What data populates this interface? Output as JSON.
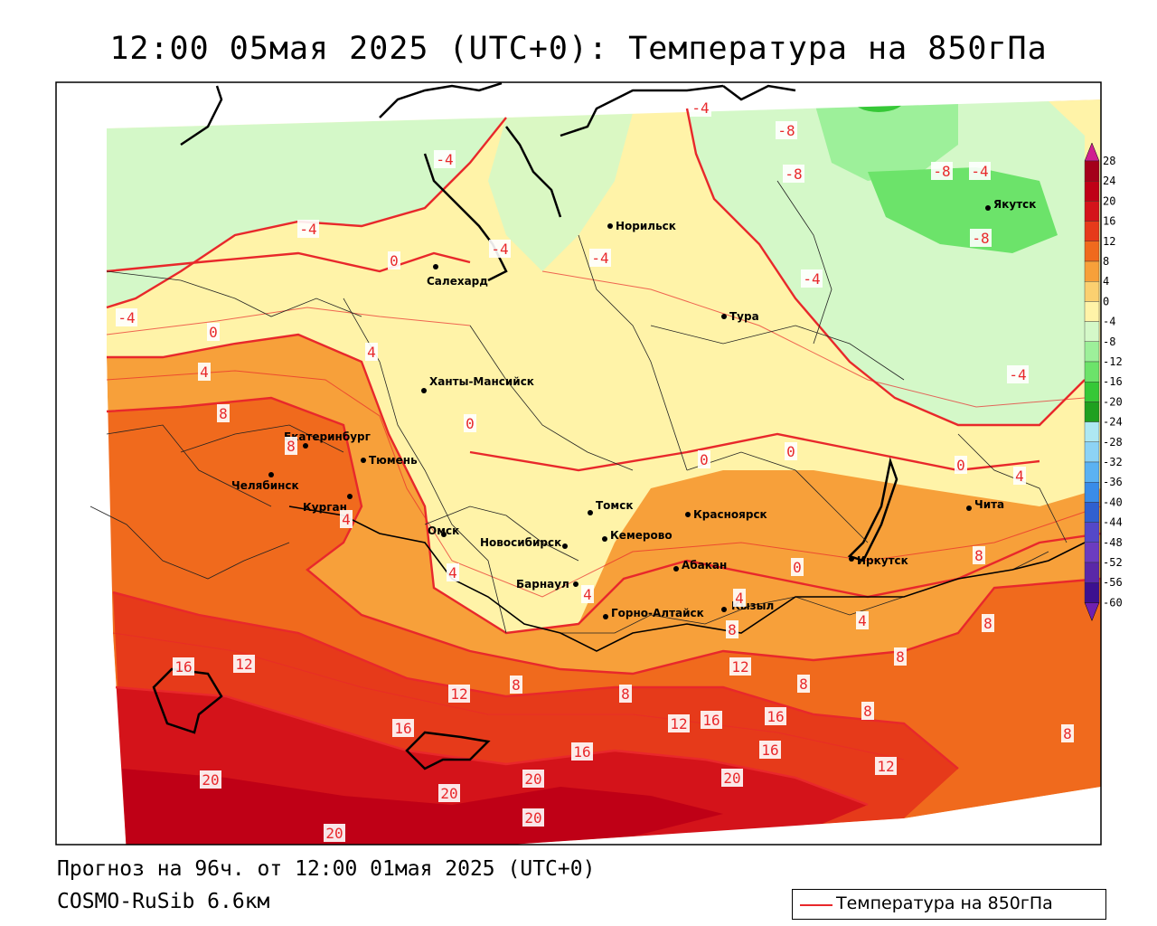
{
  "title": "12:00 05мая 2025 (UTC+0): Температура на 850гПа",
  "forecast_text": "Прогноз на 96ч. от 12:00 01мая 2025 (UTC+0)",
  "model_text": "COSMO-RuSib 6.6км",
  "legend": {
    "label": "Температура на 850гПа",
    "line_color": "#e8282b"
  },
  "colorbar": {
    "labels": [
      "28",
      "24",
      "20",
      "16",
      "12",
      "8",
      "4",
      "0",
      "-4",
      "-8",
      "-12",
      "-16",
      "-20",
      "-24",
      "-28",
      "-32",
      "-36",
      "-40",
      "-44",
      "-48",
      "-52",
      "-56",
      "-60"
    ],
    "colors": [
      "#a4001a",
      "#bf0016",
      "#d4131a",
      "#e63a1a",
      "#f06a1d",
      "#f7a03a",
      "#fbd070",
      "#fff3a8",
      "#d4f8c8",
      "#9df09a",
      "#6ce36a",
      "#36c837",
      "#1fa01f",
      "#aee8f2",
      "#8dd3f5",
      "#5bb2f2",
      "#3a8ce8",
      "#3060d0",
      "#5448c8",
      "#6c3cc0",
      "#5a28a8",
      "#3c1090"
    ],
    "top_arrow_color": "#d02090",
    "bottom_arrow_color": "#7020b0"
  },
  "cities": [
    {
      "name": "Норильск"
    },
    {
      "name": "Якутск"
    },
    {
      "name": "Салехард"
    },
    {
      "name": "Тура"
    },
    {
      "name": "Ханты-Мансийск"
    },
    {
      "name": "Екатеринбург"
    },
    {
      "name": "Тюмень"
    },
    {
      "name": "Челябинск"
    },
    {
      "name": "Курган"
    },
    {
      "name": "Омск"
    },
    {
      "name": "Новосибирск"
    },
    {
      "name": "Томск"
    },
    {
      "name": "Кемерово"
    },
    {
      "name": "Красноярск"
    },
    {
      "name": "Барнаул"
    },
    {
      "name": "Абакан"
    },
    {
      "name": "Горно-Алтайск"
    },
    {
      "name": "Кызыл"
    },
    {
      "name": "Иркутск"
    },
    {
      "name": "Чита"
    }
  ],
  "contour_labels": [
    "-4",
    "-8",
    "-8",
    "-8",
    "-4",
    "-8",
    "-4",
    "-4",
    "-4",
    "-4",
    "-4",
    "-4",
    "0",
    "-4",
    "0",
    "4",
    "4",
    "8",
    "8",
    "4",
    "0",
    "0",
    "0",
    "0",
    "4",
    "8",
    "4",
    "4",
    "0",
    "4",
    "8",
    "8",
    "4",
    "8",
    "16",
    "12",
    "12",
    "8",
    "8",
    "12",
    "8",
    "16",
    "12",
    "16",
    "16",
    "16",
    "16",
    "8",
    "12",
    "8",
    "20",
    "20",
    "20",
    "20",
    "20",
    "20"
  ]
}
